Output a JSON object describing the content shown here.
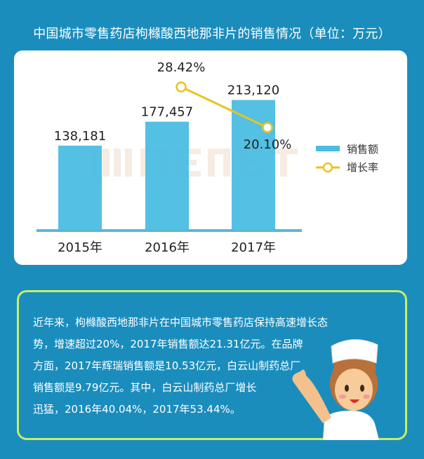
{
  "title": "中国城市零售药店枸橼酸西地那非片的销售情况（单位：万元）",
  "chart_data": {
    "type": "bar+line",
    "categories": [
      "2015年",
      "2016年",
      "2017年"
    ],
    "series": [
      {
        "name": "销售额",
        "type": "bar",
        "values": [
          138181,
          177457,
          213120
        ],
        "labels": [
          "138,181",
          "177,457",
          "213,120"
        ]
      },
      {
        "name": "增长率",
        "type": "line",
        "values": [
          null,
          28.42,
          20.1
        ],
        "labels": [
          "",
          "28.42%",
          "20.10%"
        ]
      }
    ],
    "ylim": [
      0,
      230000
    ],
    "legend": "right",
    "watermark": "米内MENET",
    "colors": {
      "bar": "#4bbde1",
      "line": "#e9c324",
      "axis": "#5bb8d6"
    }
  },
  "note": {
    "lines": [
      "近年来，枸橼酸西地那非片在中国城市零售药店保持高速增长态",
      "势，增速超过20%，2017年销售额达21.31亿元。在品牌",
      "方面，2017年辉瑞销售额是10.53亿元，白云山制药总厂",
      "销售额是9.79亿元。其中，白云山制药总厂增长",
      "迅猛，2016年40.04%，2017年53.44%。"
    ]
  }
}
